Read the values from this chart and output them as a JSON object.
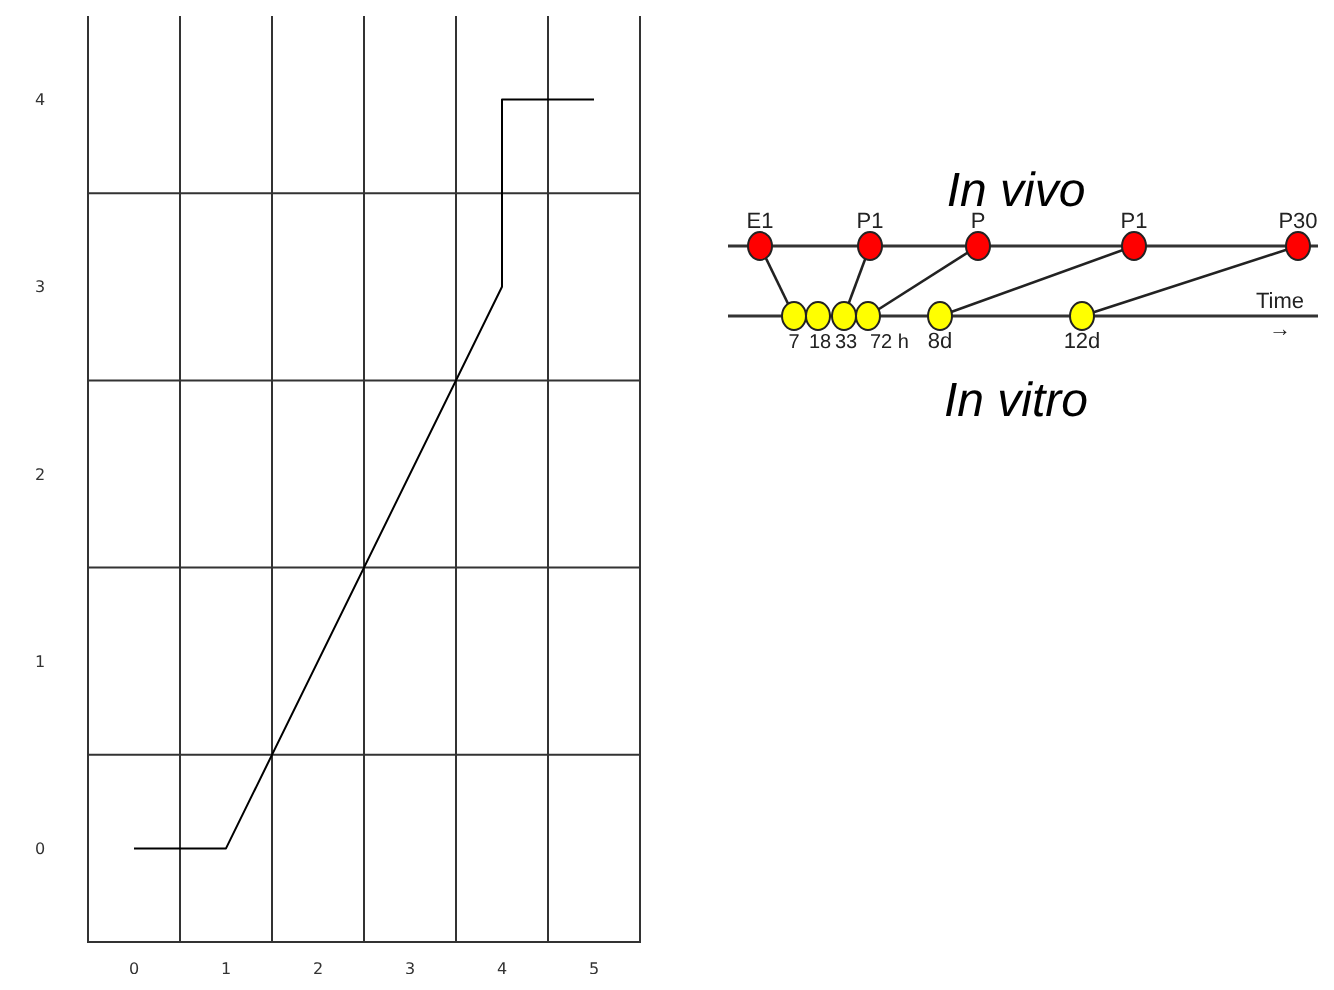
{
  "chart_data": [
    {
      "type": "line",
      "x": [
        0,
        1,
        4,
        4,
        5
      ],
      "values": [
        0,
        0,
        3,
        4,
        4
      ],
      "color": "#000000",
      "xlim": [
        -0.5,
        5.5
      ],
      "ylim": [
        -0.5,
        4.5
      ],
      "xticks": [
        0,
        {
          "value": 0.5,
          "label": null
        },
        1,
        {
          "value": 1.5,
          "label": null
        },
        2,
        {
          "value": 2.5,
          "label": null
        },
        3,
        {
          "value": 3.5,
          "label": null
        },
        4,
        {
          "value": 4.5,
          "label": null
        },
        5
      ],
      "yticks": [
        0,
        {
          "value": 0.5,
          "label": null
        },
        1,
        {
          "value": 1.5,
          "label": null
        },
        2,
        {
          "value": 2.5,
          "label": null
        },
        3,
        {
          "value": 3.5,
          "label": null
        },
        4
      ],
      "grid": true
    },
    {
      "type": "other",
      "title": "In vivo",
      "xlabel": "In vitro",
      "annotations": [
        "E1",
        "P1",
        "P",
        "P1",
        "P30",
        "7",
        "18",
        "33",
        "72 h",
        "8d",
        "12d",
        "Time",
        "→"
      ]
    }
  ]
}
